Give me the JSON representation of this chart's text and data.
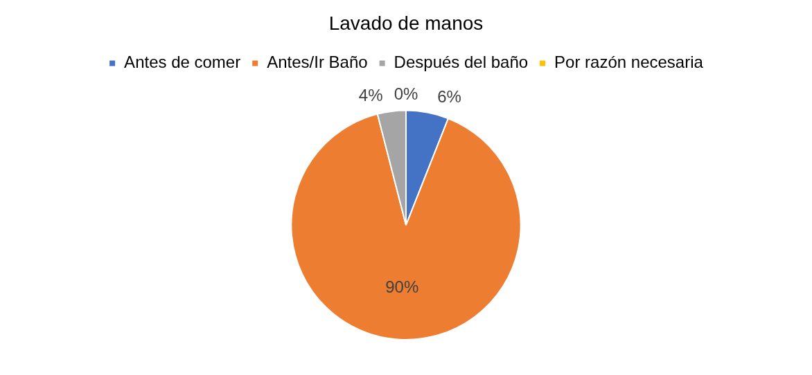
{
  "chart_data": {
    "type": "pie",
    "title": "Lavado de manos",
    "categories": [
      "Antes de comer",
      "Antes/Ir Baño",
      "Después del baño",
      "Por razón necesaria"
    ],
    "values": [
      6,
      90,
      4,
      0
    ],
    "colors": [
      "#4472c4",
      "#ed7d31",
      "#a5a5a5",
      "#ffc000"
    ],
    "value_labels": [
      "6%",
      "90%",
      "4%",
      "0%"
    ],
    "legend": "top"
  }
}
